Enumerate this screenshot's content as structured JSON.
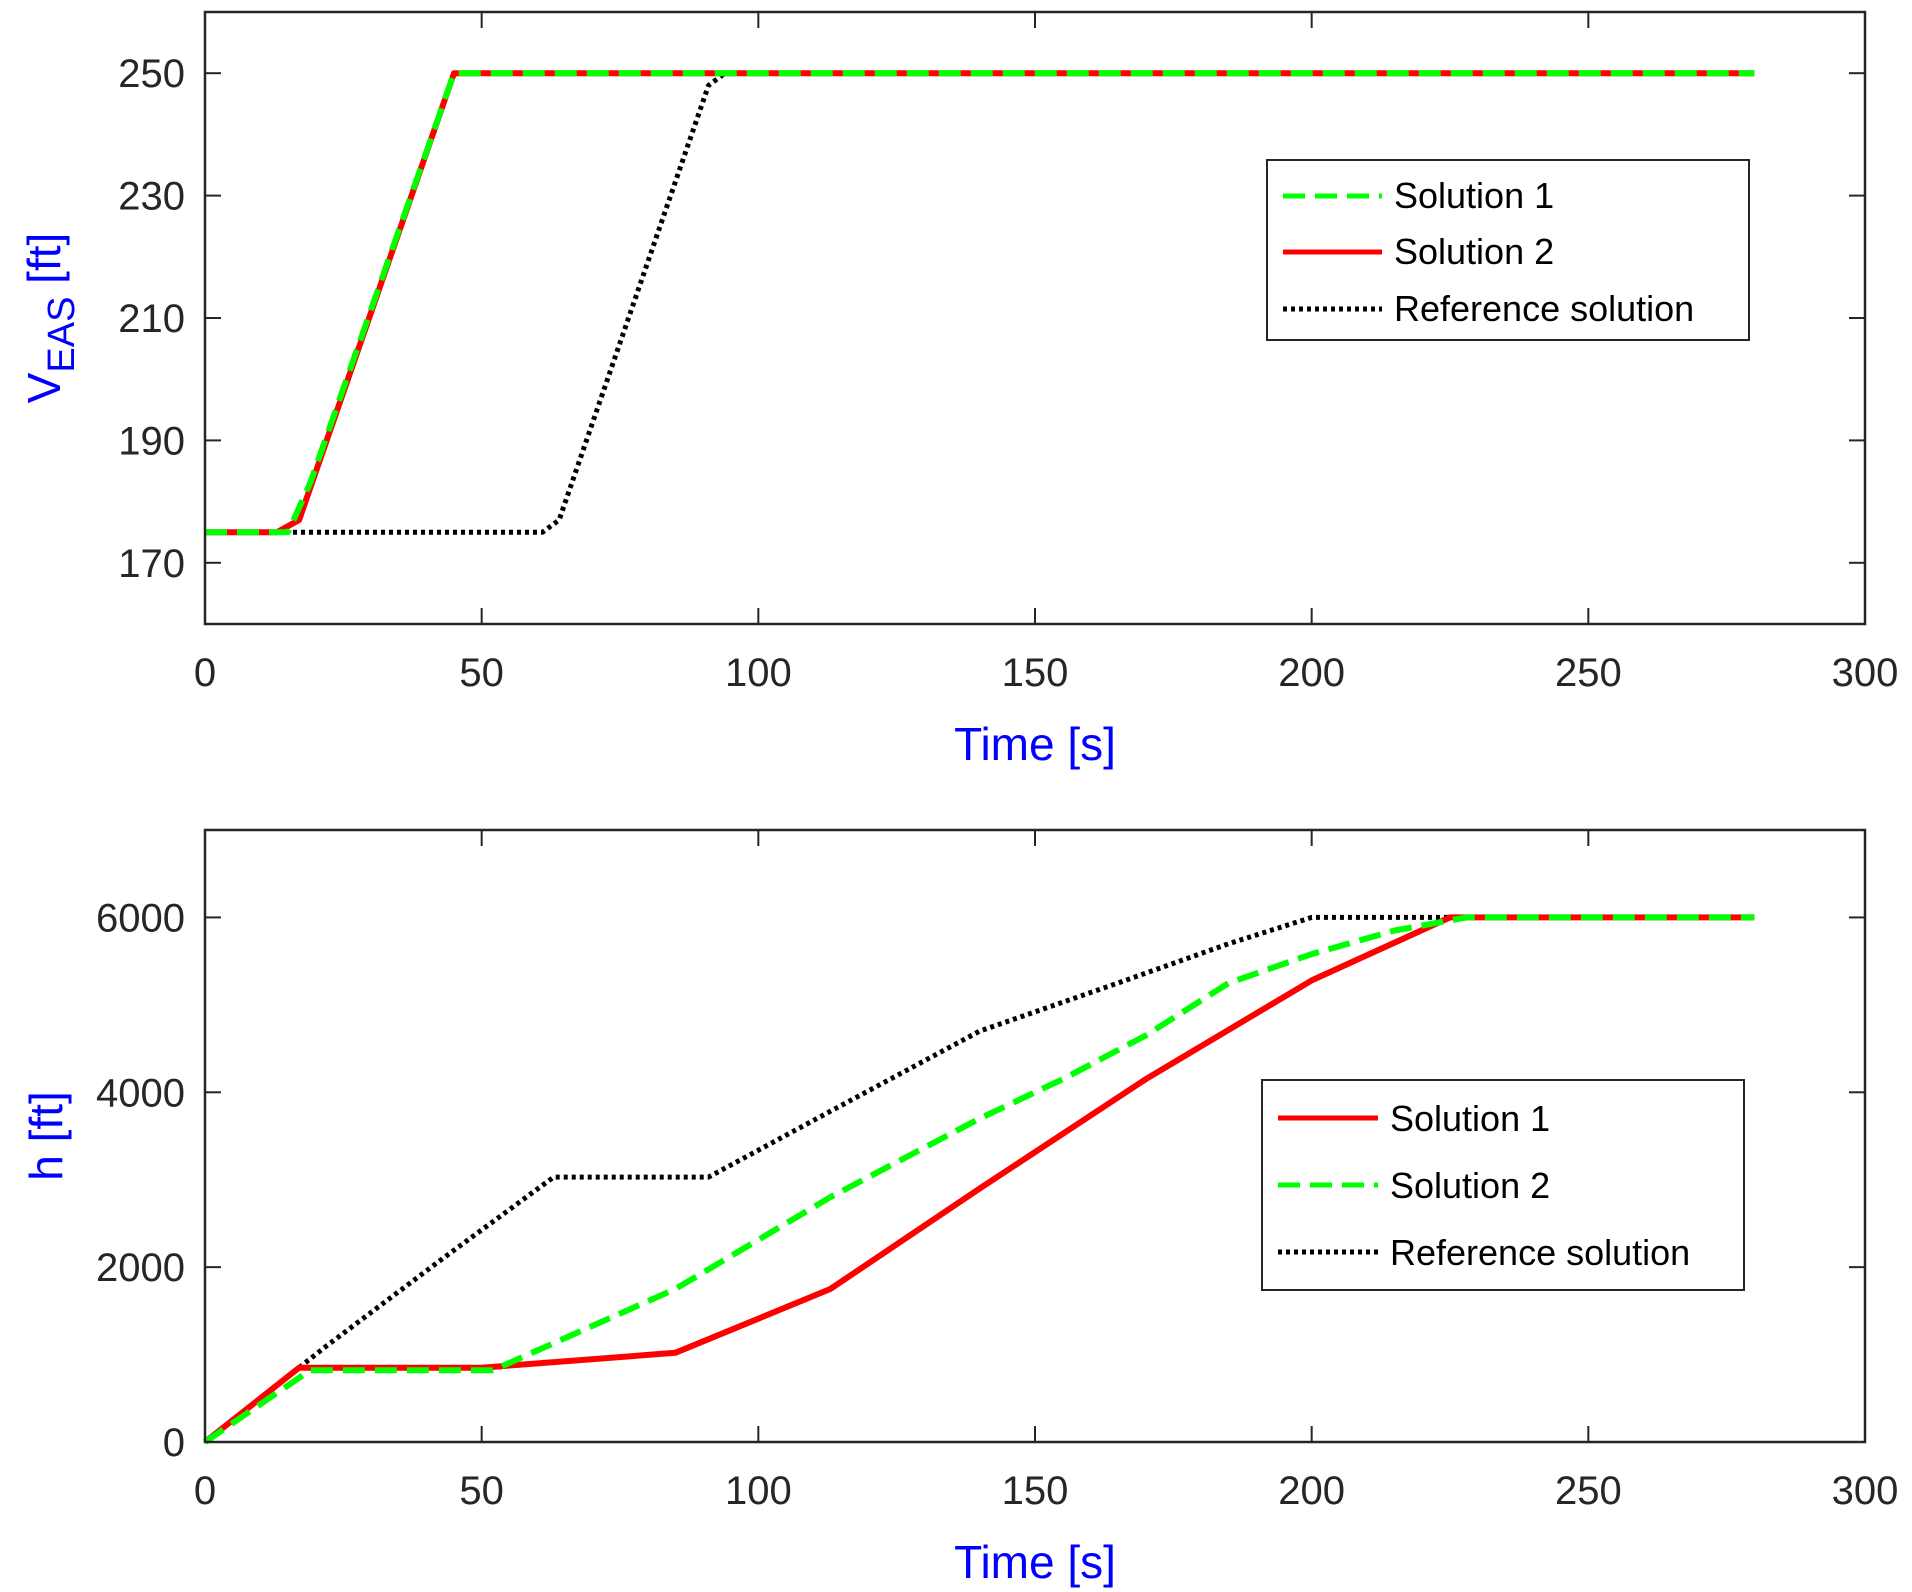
{
  "chart_data": [
    {
      "type": "line",
      "xlabel": "Time [s]",
      "ylabel": "V",
      "ylabel_subscript": "EAS",
      "ylabel_unit": " [ft]",
      "xlim": [
        0,
        300
      ],
      "ylim": [
        160,
        260
      ],
      "xticks": [
        0,
        50,
        100,
        150,
        200,
        250,
        300
      ],
      "yticks": [
        170,
        190,
        210,
        230,
        250
      ],
      "grid": false,
      "legend_position": "upper-right",
      "series": [
        {
          "name": "Solution 1",
          "color": "#00ff00",
          "style": "dashed",
          "x": [
            0,
            15,
            19,
            45,
            280
          ],
          "y": [
            175,
            175,
            183,
            250,
            250
          ]
        },
        {
          "name": "Solution 2",
          "color": "#ff0000",
          "style": "solid",
          "x": [
            0,
            13,
            17,
            45,
            280
          ],
          "y": [
            175,
            175,
            177,
            250,
            250
          ]
        },
        {
          "name": "Reference solution",
          "color": "#000000",
          "style": "dotted",
          "x": [
            0,
            61,
            64,
            91,
            94,
            272
          ],
          "y": [
            175,
            175,
            177,
            248,
            250,
            250
          ]
        }
      ]
    },
    {
      "type": "line",
      "xlabel": "Time [s]",
      "ylabel": "h [ft]",
      "xlim": [
        0,
        300
      ],
      "ylim": [
        0,
        7000
      ],
      "xticks": [
        0,
        50,
        100,
        150,
        200,
        250,
        300
      ],
      "yticks": [
        0,
        2000,
        4000,
        6000
      ],
      "grid": false,
      "legend_position": "center-right",
      "series": [
        {
          "name": "Solution 1",
          "color": "#ff0000",
          "style": "solid",
          "x": [
            0,
            17,
            50,
            85,
            113,
            140,
            170,
            200,
            225,
            280
          ],
          "y": [
            0,
            850,
            850,
            1020,
            1750,
            2900,
            4150,
            5280,
            6000,
            6000
          ]
        },
        {
          "name": "Solution 2",
          "color": "#00ff00",
          "style": "dashed",
          "x": [
            0,
            19,
            52,
            85,
            113,
            140,
            155,
            170,
            185,
            200,
            215,
            228,
            280
          ],
          "y": [
            0,
            820,
            820,
            1750,
            2800,
            3700,
            4150,
            4650,
            5250,
            5580,
            5850,
            6000,
            6000
          ]
        },
        {
          "name": "Reference solution",
          "color": "#000000",
          "style": "dotted",
          "x": [
            0,
            22,
            43,
            63,
            91,
            115,
            140,
            165,
            185,
            200,
            272
          ],
          "y": [
            0,
            1100,
            2100,
            3030,
            3030,
            3850,
            4700,
            5250,
            5700,
            6000,
            6000
          ]
        }
      ]
    }
  ],
  "colors": {
    "axis_label": "#0000ff",
    "tick_label": "#262626",
    "axis_line": "#262626"
  }
}
